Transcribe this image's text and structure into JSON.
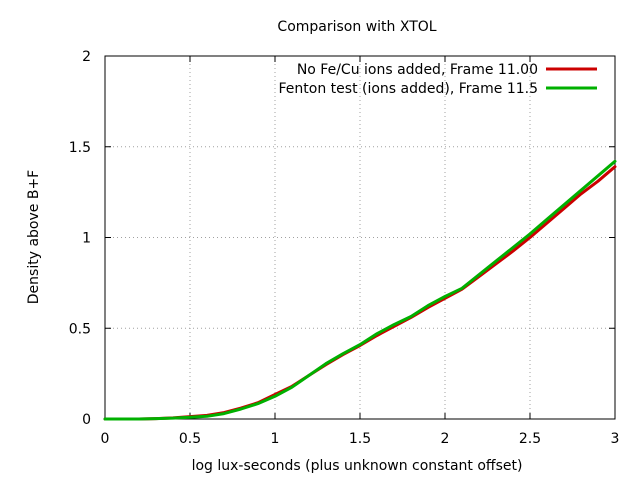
{
  "chart_data": {
    "type": "line",
    "title": "Comparison with XTOL",
    "xlabel": "log lux-seconds (plus unknown constant offset)",
    "ylabel": "Density above B+F",
    "xlim": [
      0,
      3
    ],
    "ylim": [
      0,
      2
    ],
    "xticks": [
      "0",
      "0.5",
      "1",
      "1.5",
      "2",
      "2.5",
      "3"
    ],
    "yticks": [
      "0",
      "0.5",
      "1",
      "1.5",
      "2"
    ],
    "grid": true,
    "legend_position": "top-right",
    "series": [
      {
        "name": "No Fe/Cu ions added, Frame 11.00",
        "color": "#cc0000",
        "x": [
          0,
          0.1,
          0.2,
          0.3,
          0.4,
          0.5,
          0.6,
          0.7,
          0.8,
          0.9,
          1.0,
          1.1,
          1.2,
          1.3,
          1.4,
          1.5,
          1.6,
          1.7,
          1.8,
          1.9,
          2.0,
          2.1,
          2.2,
          2.3,
          2.4,
          2.5,
          2.6,
          2.7,
          2.8,
          2.9,
          3.0
        ],
        "y": [
          0,
          0,
          0,
          0.002,
          0.006,
          0.013,
          0.02,
          0.035,
          0.06,
          0.09,
          0.135,
          0.18,
          0.24,
          0.3,
          0.355,
          0.405,
          0.46,
          0.51,
          0.56,
          0.615,
          0.665,
          0.715,
          0.785,
          0.855,
          0.925,
          1.0,
          1.08,
          1.16,
          1.24,
          1.31,
          1.39
        ]
      },
      {
        "name": "Fenton test (ions added), Frame 11.5",
        "color": "#00b000",
        "x": [
          0,
          0.1,
          0.2,
          0.3,
          0.4,
          0.5,
          0.6,
          0.7,
          0.8,
          0.9,
          1.0,
          1.1,
          1.2,
          1.3,
          1.4,
          1.5,
          1.6,
          1.7,
          1.8,
          1.9,
          2.0,
          2.1,
          2.2,
          2.3,
          2.4,
          2.5,
          2.6,
          2.7,
          2.8,
          2.9,
          3.0
        ],
        "y": [
          0,
          0,
          0,
          0.002,
          0.005,
          0.01,
          0.015,
          0.03,
          0.055,
          0.085,
          0.125,
          0.175,
          0.24,
          0.305,
          0.36,
          0.41,
          0.47,
          0.52,
          0.565,
          0.625,
          0.675,
          0.72,
          0.795,
          0.87,
          0.945,
          1.02,
          1.1,
          1.18,
          1.26,
          1.34,
          1.42
        ]
      }
    ]
  }
}
